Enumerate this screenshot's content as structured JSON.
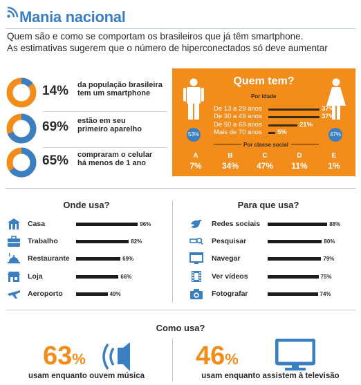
{
  "header": {
    "title": "Mania nacional",
    "subtitle_line1": "Quem são e como se comportam os brasileiros que já têm smartphone.",
    "subtitle_line2": "As estimativas sugerem que o número de hiperconectados só deve aumentar"
  },
  "stats": [
    {
      "pct": "14%",
      "value": 14,
      "line1": "da população brasileira",
      "line2": "tem um smartphone"
    },
    {
      "pct": "69%",
      "value": 69,
      "line1": "estão em seu",
      "line2": "primeiro aparelho"
    },
    {
      "pct": "65%",
      "value": 65,
      "line1": "compraram o celular",
      "line2": "há menos de 1 ano"
    }
  ],
  "quem_tem": {
    "title": "Quem tem?",
    "age_heading": "Por idade",
    "class_heading": "Por classe social",
    "male_pct": "53%",
    "female_pct": "47%"
  },
  "colors": {
    "accent": "#f28c1b",
    "brand_blue": "#3a7fc1",
    "bar": "#1c1c1c",
    "dark_brown": "#3b2a12"
  },
  "chart_data": [
    {
      "type": "bar",
      "title": "Por idade",
      "categories": [
        "De 13 a 29 anos",
        "De 30 a 49 anos",
        "De 50 a 69 anos",
        "Mais de 70 anos"
      ],
      "values": [
        37,
        37,
        21,
        5
      ],
      "labels": [
        "37%",
        "37%",
        "21%",
        "5%"
      ]
    },
    {
      "type": "table",
      "title": "Por classe social",
      "categories": [
        "A",
        "B",
        "C",
        "D",
        "E"
      ],
      "values": [
        7,
        34,
        47,
        11,
        1
      ],
      "labels": [
        "7%",
        "34%",
        "47%",
        "11%",
        "1%"
      ]
    },
    {
      "type": "bar",
      "title": "Onde usa?",
      "categories": [
        "Casa",
        "Trabalho",
        "Restaurante",
        "Loja",
        "Aeroporto"
      ],
      "values": [
        96,
        82,
        69,
        66,
        49
      ],
      "labels": [
        "96%",
        "82%",
        "69%",
        "66%",
        "49%"
      ],
      "icons": [
        "house-icon",
        "briefcase-icon",
        "restaurant-icon",
        "shop-icon",
        "airplane-icon"
      ]
    },
    {
      "type": "bar",
      "title": "Para que usa?",
      "categories": [
        "Redes sociais",
        "Pesquisar",
        "Navegar",
        "Ver vídeos",
        "Fotografar"
      ],
      "values": [
        88,
        80,
        79,
        75,
        74
      ],
      "labels": [
        "88%",
        "80%",
        "79%",
        "75%",
        "74%"
      ],
      "icons": [
        "bird-icon",
        "search-icon",
        "browser-icon",
        "film-icon",
        "camera-icon"
      ]
    }
  ],
  "como_usa": {
    "title": "Como usa?",
    "items": [
      {
        "pct": "63",
        "unit": "%",
        "caption": "usam enquanto ouvem música",
        "icon": "speaker-icon"
      },
      {
        "pct": "46",
        "unit": "%",
        "caption": "usam enquanto assistem à televisão",
        "icon": "tv-icon"
      }
    ]
  }
}
